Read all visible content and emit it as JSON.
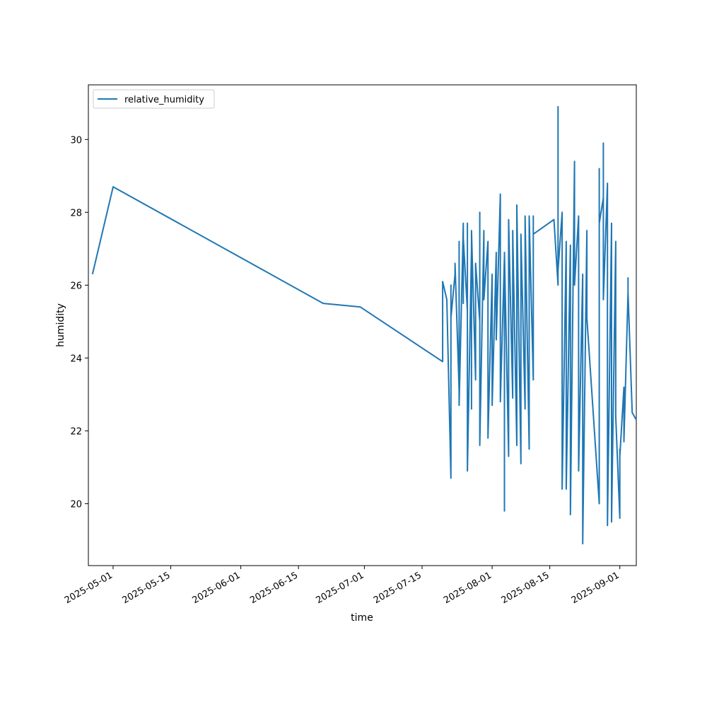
{
  "chart_data": {
    "type": "line",
    "title": "",
    "xlabel": "time",
    "ylabel": "humidity",
    "grid": false,
    "legend_position": "upper-left",
    "xlim": [
      "2025-04-25",
      "2025-09-05"
    ],
    "ylim": [
      18.3,
      31.5
    ],
    "x_ticks": [
      "2025-05-01",
      "2025-05-15",
      "2025-06-01",
      "2025-06-15",
      "2025-07-01",
      "2025-07-15",
      "2025-08-01",
      "2025-08-15",
      "2025-09-01"
    ],
    "y_ticks": [
      20,
      22,
      24,
      26,
      28,
      30
    ],
    "series": [
      {
        "name": "relative_humidity",
        "color": "#1f77b4",
        "points": [
          [
            "2025-04-26",
            26.3
          ],
          [
            "2025-05-01",
            28.7
          ],
          [
            "2025-06-21",
            25.5
          ],
          [
            "2025-06-30",
            25.4
          ],
          [
            "2025-07-20",
            23.9
          ],
          [
            "2025-07-20",
            26.1
          ],
          [
            "2025-07-21",
            25.6
          ],
          [
            "2025-07-22",
            20.7
          ],
          [
            "2025-07-22",
            26.0
          ],
          [
            "2025-07-22",
            25.1
          ],
          [
            "2025-07-23",
            26.3
          ],
          [
            "2025-07-23",
            26.6
          ],
          [
            "2025-07-24",
            23.1
          ],
          [
            "2025-07-24",
            27.2
          ],
          [
            "2025-07-24",
            22.7
          ],
          [
            "2025-07-25",
            27.7
          ],
          [
            "2025-07-25",
            25.5
          ],
          [
            "2025-07-25",
            27.3
          ],
          [
            "2025-07-26",
            25.3
          ],
          [
            "2025-07-26",
            27.7
          ],
          [
            "2025-07-26",
            20.9
          ],
          [
            "2025-07-27",
            27.0
          ],
          [
            "2025-07-27",
            22.6
          ],
          [
            "2025-07-27",
            27.5
          ],
          [
            "2025-07-28",
            23.4
          ],
          [
            "2025-07-28",
            26.6
          ],
          [
            "2025-07-29",
            25.0
          ],
          [
            "2025-07-29",
            28.0
          ],
          [
            "2025-07-29",
            21.6
          ],
          [
            "2025-07-30",
            27.5
          ],
          [
            "2025-07-30",
            25.6
          ],
          [
            "2025-07-31",
            27.2
          ],
          [
            "2025-07-31",
            21.8
          ],
          [
            "2025-08-01",
            26.3
          ],
          [
            "2025-08-01",
            22.7
          ],
          [
            "2025-08-02",
            26.9
          ],
          [
            "2025-08-02",
            24.5
          ],
          [
            "2025-08-03",
            28.5
          ],
          [
            "2025-08-03",
            22.8
          ],
          [
            "2025-08-04",
            26.8
          ],
          [
            "2025-08-04",
            19.8
          ],
          [
            "2025-08-04",
            26.9
          ],
          [
            "2025-08-05",
            21.3
          ],
          [
            "2025-08-05",
            27.8
          ],
          [
            "2025-08-06",
            22.9
          ],
          [
            "2025-08-06",
            27.5
          ],
          [
            "2025-08-07",
            21.6
          ],
          [
            "2025-08-07",
            28.2
          ],
          [
            "2025-08-08",
            21.1
          ],
          [
            "2025-08-08",
            27.4
          ],
          [
            "2025-08-09",
            22.6
          ],
          [
            "2025-08-09",
            27.9
          ],
          [
            "2025-08-10",
            21.5
          ],
          [
            "2025-08-10",
            27.9
          ],
          [
            "2025-08-11",
            23.4
          ],
          [
            "2025-08-11",
            27.9
          ],
          [
            "2025-08-11",
            27.4
          ],
          [
            "2025-08-16",
            27.8
          ],
          [
            "2025-08-17",
            26.0
          ],
          [
            "2025-08-17",
            30.9
          ],
          [
            "2025-08-17",
            26.4
          ],
          [
            "2025-08-18",
            28.0
          ],
          [
            "2025-08-18",
            20.4
          ],
          [
            "2025-08-19",
            27.2
          ],
          [
            "2025-08-19",
            20.4
          ],
          [
            "2025-08-20",
            27.1
          ],
          [
            "2025-08-20",
            19.7
          ],
          [
            "2025-08-21",
            29.4
          ],
          [
            "2025-08-21",
            26.0
          ],
          [
            "2025-08-22",
            27.9
          ],
          [
            "2025-08-22",
            20.9
          ],
          [
            "2025-08-23",
            26.3
          ],
          [
            "2025-08-23",
            18.9
          ],
          [
            "2025-08-24",
            27.5
          ],
          [
            "2025-08-24",
            25.1
          ],
          [
            "2025-08-27",
            20.0
          ],
          [
            "2025-08-27",
            29.2
          ],
          [
            "2025-08-27",
            27.7
          ],
          [
            "2025-08-28",
            28.4
          ],
          [
            "2025-08-28",
            29.9
          ],
          [
            "2025-08-28",
            25.6
          ],
          [
            "2025-08-29",
            28.8
          ],
          [
            "2025-08-29",
            19.4
          ],
          [
            "2025-08-30",
            27.7
          ],
          [
            "2025-08-30",
            19.5
          ],
          [
            "2025-08-31",
            27.2
          ],
          [
            "2025-08-31",
            22.4
          ],
          [
            "2025-09-01",
            19.6
          ],
          [
            "2025-09-01",
            21.5
          ],
          [
            "2025-09-01",
            21.3
          ],
          [
            "2025-09-02",
            23.2
          ],
          [
            "2025-09-02",
            21.7
          ],
          [
            "2025-09-03",
            25.8
          ],
          [
            "2025-09-03",
            26.2
          ],
          [
            "2025-09-03",
            25.8
          ],
          [
            "2025-09-04",
            22.5
          ],
          [
            "2025-09-05",
            22.3
          ]
        ]
      }
    ]
  }
}
